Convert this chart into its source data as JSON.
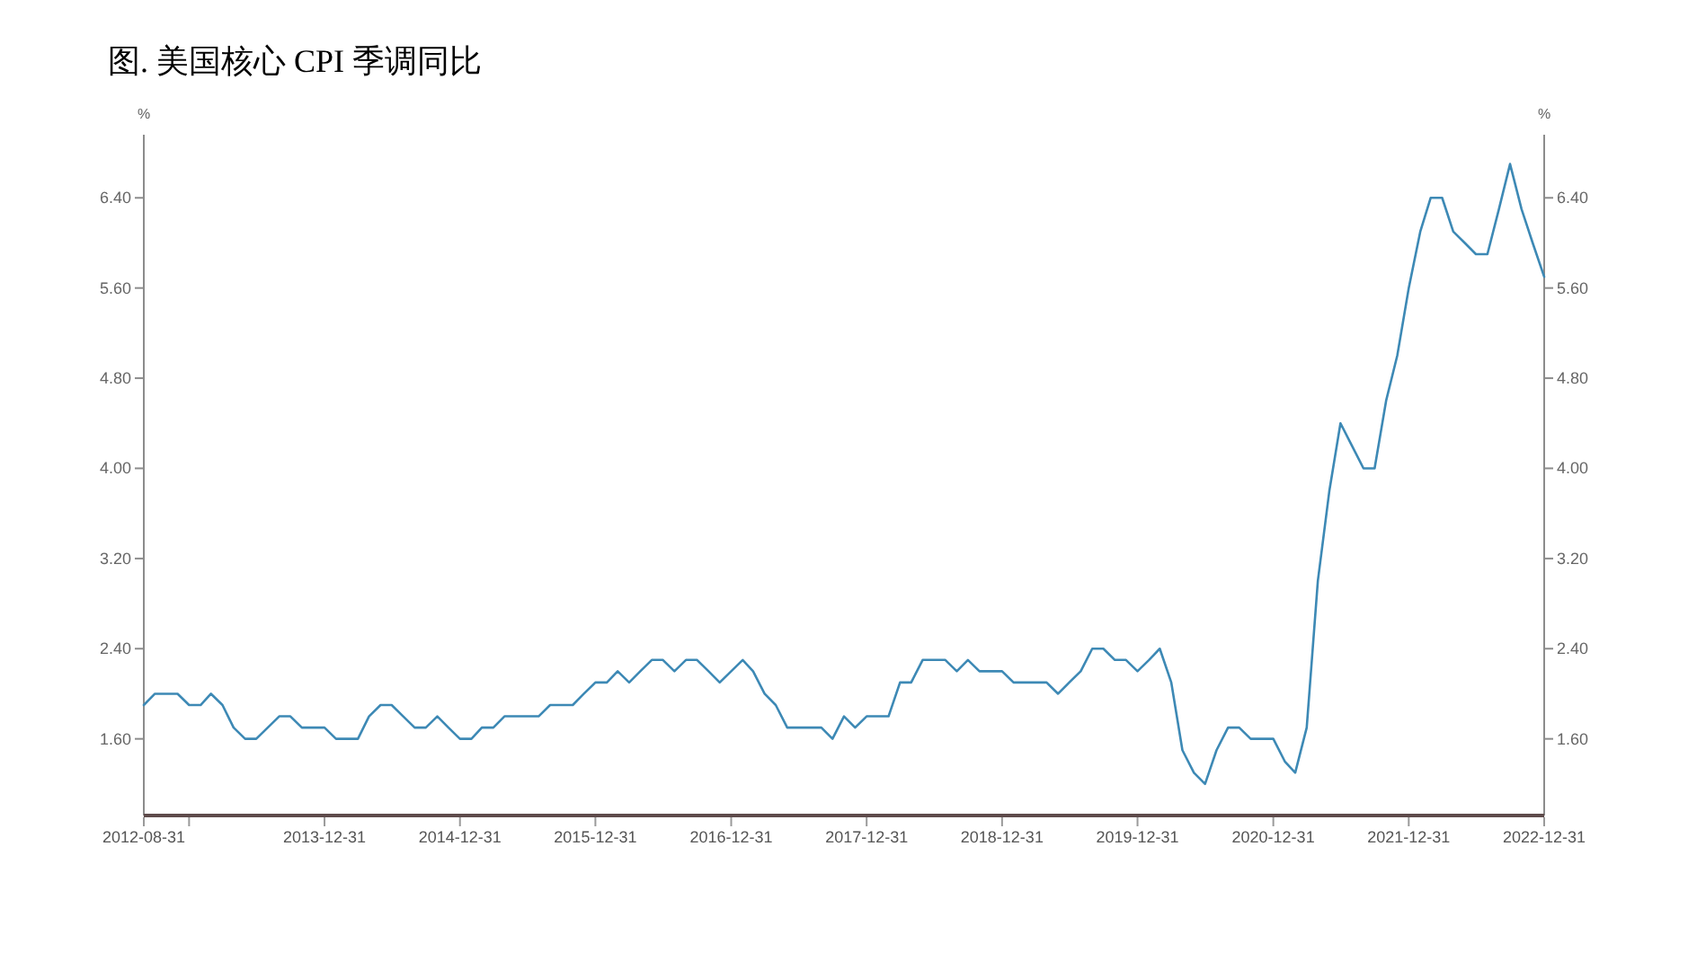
{
  "chart_data": {
    "type": "line",
    "title": "图. 美国核心 CPI 季调同比",
    "ylabel": "%",
    "y2label": "%",
    "x": [
      "2012-08-31",
      "2012-09-30",
      "2012-10-31",
      "2012-11-30",
      "2012-12-31",
      "2013-01-31",
      "2013-02-28",
      "2013-03-31",
      "2013-04-30",
      "2013-05-31",
      "2013-06-30",
      "2013-07-31",
      "2013-08-31",
      "2013-09-30",
      "2013-10-31",
      "2013-11-30",
      "2013-12-31",
      "2014-01-31",
      "2014-02-28",
      "2014-03-31",
      "2014-04-30",
      "2014-05-31",
      "2014-06-30",
      "2014-07-31",
      "2014-08-31",
      "2014-09-30",
      "2014-10-31",
      "2014-11-30",
      "2014-12-31",
      "2015-01-31",
      "2015-02-28",
      "2015-03-31",
      "2015-04-30",
      "2015-05-31",
      "2015-06-30",
      "2015-07-31",
      "2015-08-31",
      "2015-09-30",
      "2015-10-31",
      "2015-11-30",
      "2015-12-31",
      "2016-01-31",
      "2016-02-29",
      "2016-03-31",
      "2016-04-30",
      "2016-05-31",
      "2016-06-30",
      "2016-07-31",
      "2016-08-31",
      "2016-09-30",
      "2016-10-31",
      "2016-11-30",
      "2016-12-31",
      "2017-01-31",
      "2017-02-28",
      "2017-03-31",
      "2017-04-30",
      "2017-05-31",
      "2017-06-30",
      "2017-07-31",
      "2017-08-31",
      "2017-09-30",
      "2017-10-31",
      "2017-11-30",
      "2017-12-31",
      "2018-01-31",
      "2018-02-28",
      "2018-03-31",
      "2018-04-30",
      "2018-05-31",
      "2018-06-30",
      "2018-07-31",
      "2018-08-31",
      "2018-09-30",
      "2018-10-31",
      "2018-11-30",
      "2018-12-31",
      "2019-01-31",
      "2019-02-28",
      "2019-03-31",
      "2019-04-30",
      "2019-05-31",
      "2019-06-30",
      "2019-07-31",
      "2019-08-31",
      "2019-09-30",
      "2019-10-31",
      "2019-11-30",
      "2019-12-31",
      "2020-01-31",
      "2020-02-29",
      "2020-03-31",
      "2020-04-30",
      "2020-05-31",
      "2020-06-30",
      "2020-07-31",
      "2020-08-31",
      "2020-09-30",
      "2020-10-31",
      "2020-11-30",
      "2020-12-31",
      "2021-01-31",
      "2021-02-28",
      "2021-03-31",
      "2021-04-30",
      "2021-05-31",
      "2021-06-30",
      "2021-07-31",
      "2021-08-31",
      "2021-09-30",
      "2021-10-31",
      "2021-11-30",
      "2021-12-31",
      "2022-01-31",
      "2022-02-28",
      "2022-03-31",
      "2022-04-30",
      "2022-05-31",
      "2022-06-30",
      "2022-07-31",
      "2022-08-31",
      "2022-09-30",
      "2022-10-31",
      "2022-11-30",
      "2022-12-31"
    ],
    "series": [
      {
        "color": "#3d89b5",
        "values": [
          1.9,
          2.0,
          2.0,
          2.0,
          1.9,
          1.9,
          2.0,
          1.9,
          1.7,
          1.6,
          1.6,
          1.7,
          1.8,
          1.8,
          1.7,
          1.7,
          1.7,
          1.6,
          1.6,
          1.6,
          1.8,
          1.9,
          1.9,
          1.8,
          1.7,
          1.7,
          1.8,
          1.7,
          1.6,
          1.6,
          1.7,
          1.7,
          1.8,
          1.8,
          1.8,
          1.8,
          1.9,
          1.9,
          1.9,
          2.0,
          2.1,
          2.1,
          2.2,
          2.1,
          2.2,
          2.3,
          2.3,
          2.2,
          2.3,
          2.3,
          2.2,
          2.1,
          2.2,
          2.3,
          2.2,
          2.0,
          1.9,
          1.7,
          1.7,
          1.7,
          1.7,
          1.6,
          1.8,
          1.7,
          1.8,
          1.8,
          1.8,
          2.1,
          2.1,
          2.3,
          2.3,
          2.3,
          2.2,
          2.3,
          2.2,
          2.2,
          2.2,
          2.1,
          2.1,
          2.1,
          2.1,
          2.0,
          2.1,
          2.2,
          2.4,
          2.4,
          2.3,
          2.3,
          2.2,
          2.3,
          2.4,
          2.1,
          1.5,
          1.3,
          1.2,
          1.5,
          1.7,
          1.7,
          1.6,
          1.6,
          1.6,
          1.4,
          1.3,
          1.7,
          3.0,
          3.8,
          4.4,
          4.2,
          4.0,
          4.0,
          4.6,
          5.0,
          5.6,
          6.1,
          6.4,
          6.4,
          6.1,
          6.0,
          5.9,
          5.9,
          6.3,
          6.7,
          6.3,
          6.0,
          5.7
        ]
      }
    ],
    "xlim": [
      "2012-08-31",
      "2022-12-31"
    ],
    "xticks": [
      "2012-08-31",
      {
        "value": "2012-12-31",
        "label": null
      },
      "2013-12-31",
      "2014-12-31",
      "2015-12-31",
      "2016-12-31",
      "2017-12-31",
      "2018-12-31",
      "2019-12-31",
      "2020-12-31",
      "2021-12-31",
      "2022-12-31"
    ],
    "ylim": [
      0.92,
      6.96
    ],
    "yticks": [
      {
        "value": 1.6,
        "label": "1.60"
      },
      {
        "value": 2.4,
        "label": "2.40"
      },
      {
        "value": 3.2,
        "label": "3.20"
      },
      {
        "value": 4.0,
        "label": "4.00"
      },
      {
        "value": 4.8,
        "label": "4.80"
      },
      {
        "value": 5.6,
        "label": "5.60"
      },
      {
        "value": 6.4,
        "label": "6.40"
      }
    ],
    "y2lim": [
      0.92,
      6.96
    ],
    "y2ticks": [
      {
        "value": 1.6,
        "label": "1.60"
      },
      {
        "value": 2.4,
        "label": "2.40"
      },
      {
        "value": 3.2,
        "label": "3.20"
      },
      {
        "value": 4.0,
        "label": "4.00"
      },
      {
        "value": 4.8,
        "label": "4.80"
      },
      {
        "value": 5.6,
        "label": "5.60"
      },
      {
        "value": 6.4,
        "label": "6.40"
      }
    ],
    "grid": false,
    "marker": "none",
    "line_style": "solid"
  }
}
